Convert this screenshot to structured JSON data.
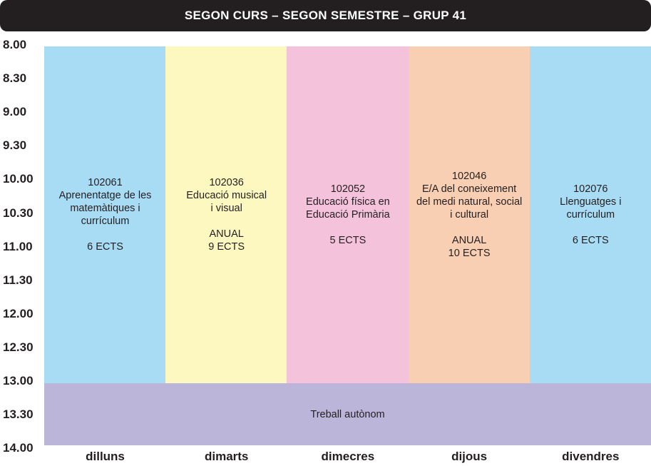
{
  "header": {
    "title": "SEGON CURS – SEGON SEMESTRE – GRUP 41"
  },
  "times": [
    "8.00",
    "8.30",
    "9.00",
    "9.30",
    "10.00",
    "10.30",
    "11.00",
    "11.30",
    "12.00",
    "12.30",
    "13.00",
    "13.30",
    "14.00"
  ],
  "days": [
    "dilluns",
    "dimarts",
    "dimecres",
    "dijous",
    "divendres"
  ],
  "courses": [
    {
      "code": "102061",
      "name": [
        "Aprenentatge de les",
        "matemàtiques i",
        "currículum"
      ],
      "credits": [
        "6 ECTS"
      ]
    },
    {
      "code": "102036",
      "name": [
        "Educació musical",
        "i visual"
      ],
      "credits": [
        "ANUAL",
        "9 ECTS"
      ]
    },
    {
      "code": "102052",
      "name": [
        "Educació física en",
        "Educació Primària"
      ],
      "credits": [
        "5 ECTS"
      ]
    },
    {
      "code": "102046",
      "name": [
        "E/A del coneixement",
        "del medi natural, social",
        "i cultural"
      ],
      "credits": [
        "ANUAL",
        "10 ECTS"
      ]
    },
    {
      "code": "102076",
      "name": [
        "Llenguatges i",
        "currículum"
      ],
      "credits": [
        "6 ECTS"
      ]
    }
  ],
  "autonomous": "Treball autònom"
}
